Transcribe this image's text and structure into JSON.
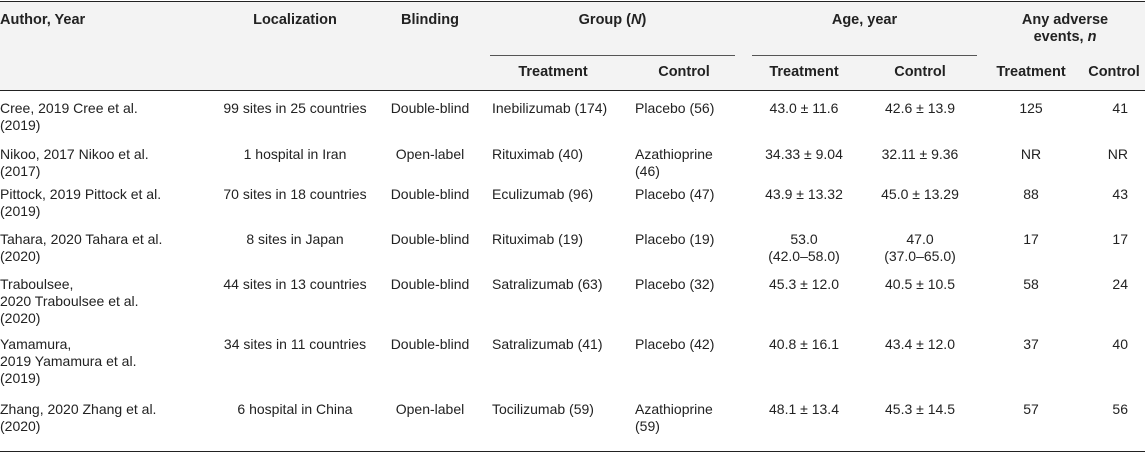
{
  "headers": {
    "author": "Author, Year",
    "localization": "Localization",
    "blinding": "Blinding",
    "group_prefix": "Group (",
    "group_n": "N",
    "group_suffix": ")",
    "age": "Age, year",
    "ae_line1": "Any adverse",
    "ae_line2_prefix": "events, ",
    "ae_line2_n": "n",
    "treatment": "Treatment",
    "control": "Control"
  },
  "rows": [
    {
      "author": [
        "Cree, 2019 Cree et al.",
        "(2019)"
      ],
      "localization": [
        "99 sites in 25 countries"
      ],
      "blinding": [
        "Double-blind"
      ],
      "group_treatment": [
        "Inebilizumab (174)"
      ],
      "group_control": [
        "Placebo (56)"
      ],
      "age_treatment": [
        "43.0 ± 11.6"
      ],
      "age_control": [
        "42.6 ± 13.9"
      ],
      "ae_treatment": "125",
      "ae_control": "41"
    },
    {
      "author": [
        "Nikoo, 2017 Nikoo et al.",
        "(2017)"
      ],
      "localization": [
        "1 hospital in Iran"
      ],
      "blinding": [
        "Open-label"
      ],
      "group_treatment": [
        "Rituximab (40)"
      ],
      "group_control": [
        "Azathioprine",
        "(46)"
      ],
      "age_treatment": [
        "34.33 ± 9.04"
      ],
      "age_control": [
        "32.11 ± 9.36"
      ],
      "ae_treatment": "NR",
      "ae_control": "NR"
    },
    {
      "author": [
        "Pittock, 2019 Pittock et al.",
        "(2019)"
      ],
      "localization": [
        "70 sites in 18 countries"
      ],
      "blinding": [
        "Double-blind"
      ],
      "group_treatment": [
        "Eculizumab (96)"
      ],
      "group_control": [
        "Placebo (47)"
      ],
      "age_treatment": [
        "43.9 ± 13.32"
      ],
      "age_control": [
        "45.0 ± 13.29"
      ],
      "ae_treatment": "88",
      "ae_control": "43"
    },
    {
      "author": [
        "Tahara, 2020 Tahara et al.",
        "(2020)"
      ],
      "localization": [
        "8 sites in Japan"
      ],
      "blinding": [
        "Double-blind"
      ],
      "group_treatment": [
        "Rituximab (19)"
      ],
      "group_control": [
        "Placebo (19)"
      ],
      "age_treatment": [
        "53.0",
        "(42.0–58.0)"
      ],
      "age_control": [
        "47.0",
        "(37.0–65.0)"
      ],
      "ae_treatment": "17",
      "ae_control": "17"
    },
    {
      "author": [
        "Traboulsee,",
        "2020 Traboulsee et al.",
        "(2020)"
      ],
      "localization": [
        "44 sites in 13 countries"
      ],
      "blinding": [
        "Double-blind"
      ],
      "group_treatment": [
        "Satralizumab (63)"
      ],
      "group_control": [
        "Placebo (32)"
      ],
      "age_treatment": [
        "45.3 ± 12.0"
      ],
      "age_control": [
        "40.5 ± 10.5"
      ],
      "ae_treatment": "58",
      "ae_control": "24"
    },
    {
      "author": [
        "Yamamura,",
        "2019 Yamamura et al.",
        "(2019)"
      ],
      "localization": [
        "34 sites in 11 countries"
      ],
      "blinding": [
        "Double-blind"
      ],
      "group_treatment": [
        "Satralizumab (41)"
      ],
      "group_control": [
        "Placebo (42)"
      ],
      "age_treatment": [
        "40.8 ± 16.1"
      ],
      "age_control": [
        "43.4 ± 12.0"
      ],
      "ae_treatment": "37",
      "ae_control": "40"
    },
    {
      "author": [
        "Zhang, 2020 Zhang et al.",
        "(2020)"
      ],
      "localization": [
        "6 hospital in China"
      ],
      "blinding": [
        "Open-label"
      ],
      "group_treatment": [
        "Tocilizumab (59)"
      ],
      "group_control": [
        "Azathioprine",
        "(59)"
      ],
      "age_treatment": [
        "48.1 ± 13.4"
      ],
      "age_control": [
        "45.3 ± 14.5"
      ],
      "ae_treatment": "57",
      "ae_control": "56"
    }
  ]
}
